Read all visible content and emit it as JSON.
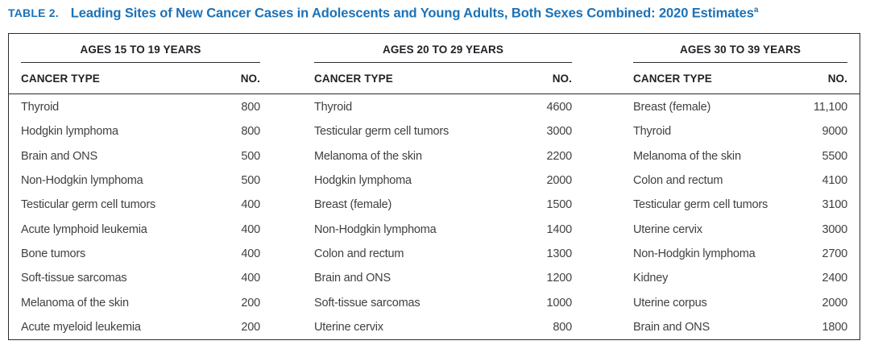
{
  "title": {
    "label": "TABLE 2.",
    "text": "Leading Sites of New Cancer Cases in Adolescents and Young Adults, Both Sexes Combined: 2020 Estimates",
    "superscript": "a"
  },
  "column_headers": {
    "cancer_type": "CANCER TYPE",
    "number": "NO."
  },
  "colors": {
    "title_blue": "#1b72b8",
    "border": "#2b2b31",
    "header_text": "#222226",
    "body_text": "#414144"
  },
  "groups": [
    {
      "header": "AGES 15 TO 19 YEARS",
      "rows": [
        {
          "type": "Thyroid",
          "no": "800"
        },
        {
          "type": "Hodgkin lymphoma",
          "no": "800"
        },
        {
          "type": "Brain and ONS",
          "no": "500"
        },
        {
          "type": "Non-Hodgkin lymphoma",
          "no": "500"
        },
        {
          "type": "Testicular germ cell tumors",
          "no": "400"
        },
        {
          "type": "Acute lymphoid leukemia",
          "no": "400"
        },
        {
          "type": "Bone tumors",
          "no": "400"
        },
        {
          "type": "Soft-tissue sarcomas",
          "no": "400"
        },
        {
          "type": "Melanoma of the skin",
          "no": "200"
        },
        {
          "type": "Acute myeloid leukemia",
          "no": "200"
        }
      ]
    },
    {
      "header": "AGES 20 TO 29 YEARS",
      "rows": [
        {
          "type": "Thyroid",
          "no": "4600"
        },
        {
          "type": "Testicular germ cell tumors",
          "no": "3000"
        },
        {
          "type": "Melanoma of the skin",
          "no": "2200"
        },
        {
          "type": "Hodgkin lymphoma",
          "no": "2000"
        },
        {
          "type": "Breast (female)",
          "no": "1500"
        },
        {
          "type": "Non-Hodgkin lymphoma",
          "no": "1400"
        },
        {
          "type": "Colon and rectum",
          "no": "1300"
        },
        {
          "type": "Brain and ONS",
          "no": "1200"
        },
        {
          "type": "Soft-tissue sarcomas",
          "no": "1000"
        },
        {
          "type": "Uterine cervix",
          "no": "800"
        }
      ]
    },
    {
      "header": "AGES 30 TO 39 YEARS",
      "rows": [
        {
          "type": "Breast (female)",
          "no": "11,100"
        },
        {
          "type": "Thyroid",
          "no": "9000"
        },
        {
          "type": "Melanoma of the skin",
          "no": "5500"
        },
        {
          "type": "Colon and rectum",
          "no": "4100"
        },
        {
          "type": "Testicular germ cell tumors",
          "no": "3100"
        },
        {
          "type": "Uterine cervix",
          "no": "3000"
        },
        {
          "type": "Non-Hodgkin lymphoma",
          "no": "2700"
        },
        {
          "type": "Kidney",
          "no": "2400"
        },
        {
          "type": "Uterine corpus",
          "no": "2000"
        },
        {
          "type": "Brain and ONS",
          "no": "1800"
        }
      ]
    }
  ]
}
